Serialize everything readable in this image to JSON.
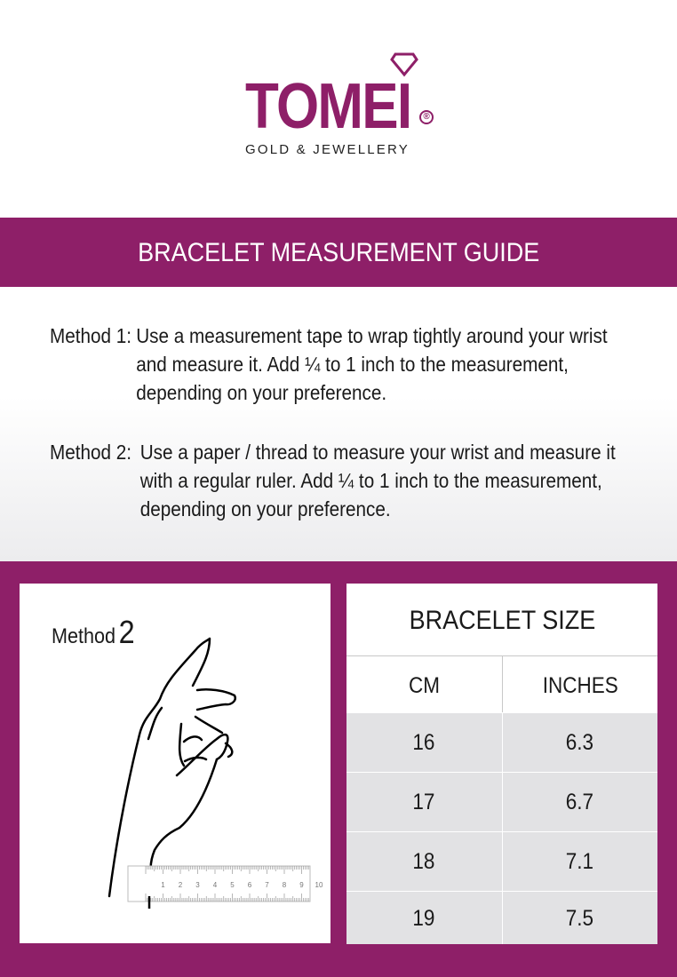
{
  "logo": {
    "brand": "TOMEI",
    "tagline": "GOLD & JEWELLERY",
    "registered": "®"
  },
  "banner": {
    "title": "BRACELET MEASUREMENT GUIDE"
  },
  "methods": [
    {
      "label": "Method 1:",
      "text": "Use a measurement tape to wrap tightly around your wrist and measure it. Add ¼ to 1 inch to the measurement, depending on your preference."
    },
    {
      "label": "Method 2:",
      "text": "Use a paper / thread to measure your wrist and measure it with a regular ruler. Add ¼ to 1 inch to the measurement, depending on your preference."
    }
  ],
  "illustration": {
    "label": "Method",
    "number": "2",
    "ruler_ticks": [
      "1",
      "2",
      "3",
      "4",
      "5",
      "6",
      "7",
      "8",
      "9",
      "10"
    ]
  },
  "size_table": {
    "title": "BRACELET SIZE",
    "headers": [
      "CM",
      "INCHES"
    ],
    "rows": [
      [
        "16",
        "6.3"
      ],
      [
        "17",
        "6.7"
      ],
      [
        "18",
        "7.1"
      ],
      [
        "19",
        "7.5"
      ]
    ]
  },
  "colors": {
    "brand": "#8e1f68",
    "row_bg": "#e2e2e4"
  }
}
